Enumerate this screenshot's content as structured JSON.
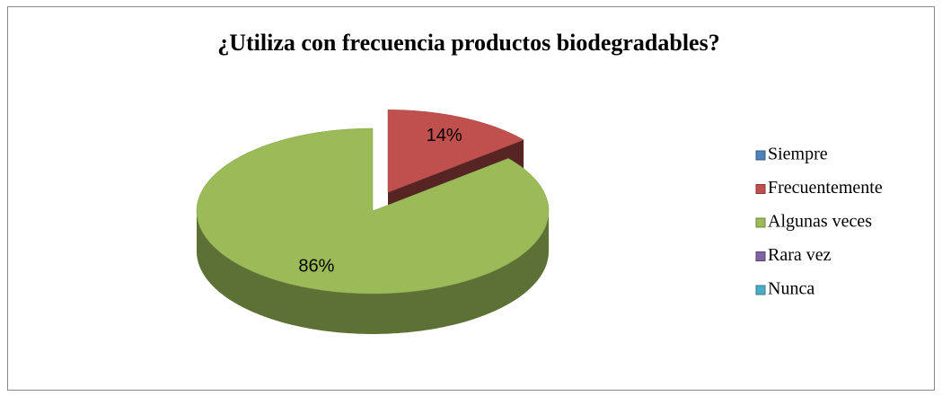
{
  "chart_data": {
    "type": "pie",
    "title": "¿Utiliza con frecuencia productos biodegradables?",
    "categories": [
      "Siempre",
      "Frecuentemente",
      "Algunas veces",
      "Rara vez",
      "Nunca"
    ],
    "values": [
      0,
      14,
      86,
      0,
      0
    ],
    "value_labels": [
      null,
      "14%",
      "86%",
      null,
      null
    ],
    "colors": [
      "#4f81bd",
      "#c0504d",
      "#9bbb59",
      "#8064a2",
      "#4bacc6"
    ],
    "legend": "right"
  }
}
